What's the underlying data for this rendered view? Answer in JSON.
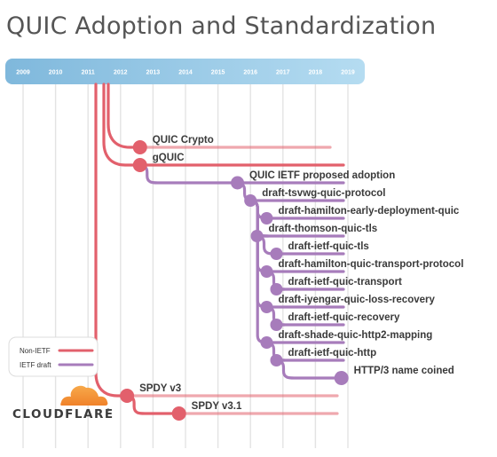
{
  "title": "QUIC Adoption and Standardization",
  "years": [
    "2009",
    "2010",
    "2011",
    "2012",
    "2013",
    "2014",
    "2015",
    "2016",
    "2017",
    "2018",
    "2019"
  ],
  "colors": {
    "non_ietf": "#e2606c",
    "ietf": "#a77cbb",
    "bar_start": "#7fb8dc",
    "bar_end": "#b5dcf1",
    "grid": "#e3e3e3"
  },
  "nodes": [
    {
      "id": "quic-crypto",
      "label": "QUIC Crypto",
      "type": "non_ietf",
      "date": 2012.6
    },
    {
      "id": "gquic",
      "label": "gQUIC",
      "type": "non_ietf",
      "date": 2012.6
    },
    {
      "id": "quic-ietf-proposed-adoption",
      "label": "QUIC IETF proposed adoption",
      "type": "ietf",
      "date": 2015.6
    },
    {
      "id": "draft-tsvwg-quic-protocol",
      "label": "draft-tsvwg-quic-protocol",
      "type": "ietf",
      "date": 2016.0
    },
    {
      "id": "draft-hamilton-early-deployment-quic",
      "label": "draft-hamilton-early-deployment-quic",
      "type": "ietf",
      "date": 2016.5
    },
    {
      "id": "draft-thomson-quic-tls",
      "label": "draft-thomson-quic-tls",
      "type": "ietf",
      "date": 2016.2
    },
    {
      "id": "draft-ietf-quic-tls",
      "label": "draft-ietf-quic-tls",
      "type": "ietf",
      "date": 2016.8
    },
    {
      "id": "draft-hamilton-quic-transport-protocol",
      "label": "draft-hamilton-quic-transport-protocol",
      "type": "ietf",
      "date": 2016.5
    },
    {
      "id": "draft-ietf-quic-transport",
      "label": "draft-ietf-quic-transport",
      "type": "ietf",
      "date": 2016.8
    },
    {
      "id": "draft-iyengar-quic-loss-recovery",
      "label": "draft-iyengar-quic-loss-recovery",
      "type": "ietf",
      "date": 2016.5
    },
    {
      "id": "draft-ietf-quic-recovery",
      "label": "draft-ietf-quic-recovery",
      "type": "ietf",
      "date": 2016.8
    },
    {
      "id": "draft-shade-quic-http2-mapping",
      "label": "draft-shade-quic-http2-mapping",
      "type": "ietf",
      "date": 2016.5
    },
    {
      "id": "draft-ietf-quic-http",
      "label": "draft-ietf-quic-http",
      "type": "ietf",
      "date": 2016.8
    },
    {
      "id": "http3-name-coined",
      "label": "HTTP/3 name coined",
      "type": "ietf",
      "date": 2018.8
    },
    {
      "id": "spdy-v3",
      "label": "SPDY v3",
      "type": "non_ietf",
      "date": 2012.2
    },
    {
      "id": "spdy-v3-1",
      "label": "SPDY v3.1",
      "type": "non_ietf",
      "date": 2013.8
    }
  ],
  "legend": [
    {
      "label": "Non-IETF",
      "type": "non_ietf"
    },
    {
      "label": "IETF draft",
      "type": "ietf"
    }
  ],
  "logo": {
    "text": "CLOUDFLARE",
    "icon": "cloud-logo-icon"
  }
}
